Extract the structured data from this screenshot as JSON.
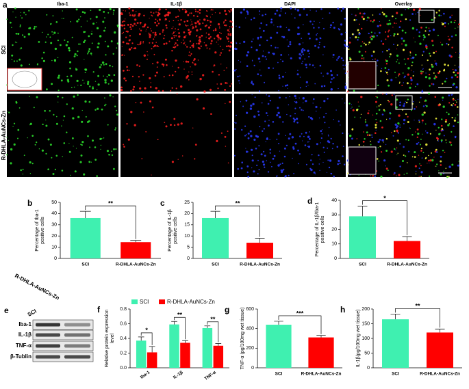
{
  "panel_a": {
    "label": "a",
    "columns": [
      "Iba-1",
      "IL-1β",
      "DAPI",
      "Overlay"
    ],
    "rows": [
      "SCI",
      "R-DHLA-AuNCs-Zn"
    ]
  },
  "panel_e": {
    "label": "e",
    "lanes": [
      "SCI",
      "R-DHLA-AuNCs-Zn"
    ],
    "bands": [
      "Iba-1",
      "IL-1β",
      "TNF-α",
      "β-Tublin"
    ]
  },
  "chart_data": [
    {
      "type": "bar",
      "label": "b",
      "ylabel": [
        "Percentage of Iba-1",
        "positive cells"
      ],
      "categories": [
        "SCI",
        "R-DHLA-AuNCs-Zn"
      ],
      "values": [
        36,
        14.5
      ],
      "errors": [
        6,
        1.5
      ],
      "colors": [
        "#3ff0b0",
        "#ff0000"
      ],
      "ylim": [
        0,
        50
      ],
      "yticks": [
        0,
        10,
        20,
        30,
        40,
        50
      ],
      "significance": "**"
    },
    {
      "type": "bar",
      "label": "c",
      "ylabel": [
        "Percentage of IL-1β",
        "positive cells"
      ],
      "categories": [
        "SCI",
        "R-DHLA-AuNCs-Zn"
      ],
      "values": [
        18,
        7
      ],
      "errors": [
        3,
        2
      ],
      "colors": [
        "#3ff0b0",
        "#ff0000"
      ],
      "ylim": [
        0,
        25
      ],
      "yticks": [
        0,
        5,
        10,
        15,
        20,
        25
      ],
      "significance": "**"
    },
    {
      "type": "bar",
      "label": "d",
      "ylabel": [
        "Percentage of IL-1β/Iba-1",
        "positive cells"
      ],
      "categories": [
        "SCI",
        "R-DHLA-AuNCs-Zn"
      ],
      "values": [
        29,
        12
      ],
      "errors": [
        7,
        3
      ],
      "colors": [
        "#3ff0b0",
        "#ff0000"
      ],
      "ylim": [
        0,
        40
      ],
      "yticks": [
        0,
        10,
        20,
        30,
        40
      ],
      "significance": "*"
    },
    {
      "type": "grouped_bar",
      "label": "f",
      "ylabel": [
        "Relative protein expression",
        "level"
      ],
      "categories": [
        "Iba-1",
        "IL-1β",
        "TNF-α"
      ],
      "series": [
        {
          "name": "SCI",
          "color": "#3ff0b0",
          "values": [
            0.37,
            0.59,
            0.54
          ],
          "errors": [
            0.05,
            0.04,
            0.03
          ]
        },
        {
          "name": "R-DHLA-AuNCs-Zn",
          "color": "#ff0000",
          "values": [
            0.21,
            0.34,
            0.3
          ],
          "errors": [
            0.08,
            0.03,
            0.03
          ]
        }
      ],
      "ylim": [
        0,
        0.8
      ],
      "yticks": [
        {
          "value": 0,
          "label": "0.0"
        },
        0.2,
        0.4,
        0.6,
        0.8
      ],
      "significance": [
        "*",
        "**",
        "**"
      ],
      "legend": "top"
    },
    {
      "type": "bar",
      "label": "g",
      "ylabel": [
        "TNF-α (pg/100mg wet tissue)"
      ],
      "categories": [
        "SCI",
        "R-DHLA-AuNCs-Zn"
      ],
      "values": [
        440,
        310
      ],
      "errors": [
        35,
        20
      ],
      "colors": [
        "#3ff0b0",
        "#ff0000"
      ],
      "ylim": [
        0,
        600
      ],
      "yticks": [
        0,
        200,
        400,
        600
      ],
      "significance": "***"
    },
    {
      "type": "bar",
      "label": "h",
      "ylabel": [
        "IL-1β(pg/100mg wet tissue)"
      ],
      "categories": [
        "SCI",
        "R-DHLA-AuNCs-Zn"
      ],
      "values": [
        165,
        120
      ],
      "errors": [
        18,
        12
      ],
      "colors": [
        "#3ff0b0",
        "#ff0000"
      ],
      "ylim": [
        0,
        200
      ],
      "yticks": [
        0,
        50,
        100,
        150,
        200
      ],
      "significance": "**"
    }
  ]
}
